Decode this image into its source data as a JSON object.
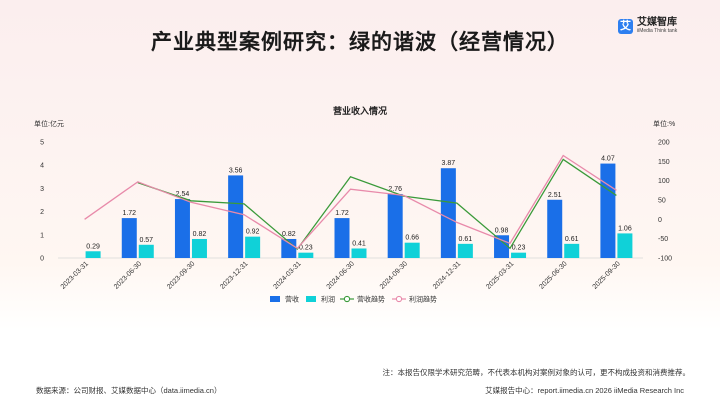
{
  "header": {
    "title": "产业典型案例研究：绿的谐波（经营情况）",
    "logo_mark": "艾",
    "logo_name": "艾媒智库",
    "logo_sub": "iiMedia Think tank"
  },
  "chart_data": {
    "type": "bar",
    "title": "营业收入情况",
    "left_unit": "单位:亿元",
    "right_unit": "单位:%",
    "categories": [
      "2023-03-31",
      "2023-06-30",
      "2023-09-30",
      "2023-12-31",
      "2024-03-31",
      "2024-06-30",
      "2024-09-30",
      "2024-12-31",
      "2025-03-31",
      "2025-06-30",
      "2025-09-30"
    ],
    "series": [
      {
        "name": "营收",
        "kind": "bar",
        "axis": "left",
        "color": "#1a6fe8",
        "values": [
          null,
          1.72,
          2.54,
          3.56,
          0.82,
          1.72,
          2.76,
          3.87,
          0.98,
          2.51,
          4.07
        ]
      },
      {
        "name": "利润",
        "kind": "bar",
        "axis": "left",
        "color": "#10d1d8",
        "values": [
          0.29,
          0.57,
          0.82,
          0.92,
          0.23,
          0.41,
          0.66,
          0.61,
          0.23,
          0.61,
          1.06
        ]
      },
      {
        "name": "营收趋势",
        "kind": "line",
        "axis": "right",
        "color": "#3a9a3a",
        "values": [
          null,
          95,
          48,
          40,
          -77,
          110,
          60,
          42,
          -75,
          155,
          62
        ]
      },
      {
        "name": "利润趋势",
        "kind": "line",
        "axis": "right",
        "color": "#e88aaa",
        "values": [
          0,
          97,
          44,
          12,
          -75,
          78,
          62,
          -8,
          -62,
          165,
          75
        ]
      }
    ],
    "y_left": {
      "min": 0,
      "max": 5,
      "ticks": [
        0,
        1,
        2,
        3,
        4,
        5
      ]
    },
    "y_right": {
      "min": -100,
      "max": 200,
      "ticks": [
        -100,
        -50,
        0,
        50,
        100,
        150,
        200
      ]
    },
    "legend_position": "bottom",
    "grid": false
  },
  "footer": {
    "note": "注：本报告仅限学术研究范畴，不代表本机构对案例对象的认可，更不构成投资和消费推荐。",
    "source": "数据来源：公司财报、艾媒数据中心（data.iimedia.cn）",
    "right": "艾媒报告中心：report.iimedia.cn  2026 iiMedia Research Inc"
  }
}
